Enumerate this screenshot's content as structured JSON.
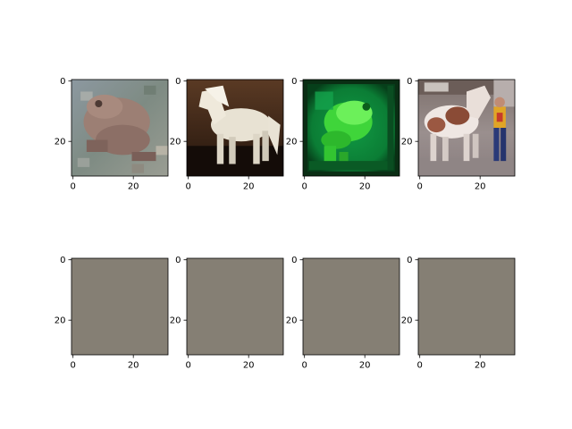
{
  "chart_data": {
    "type": "image-grid",
    "rows": 2,
    "cols": 4,
    "panels": [
      {
        "row": 0,
        "col": 0,
        "content": "toad photo",
        "xticks": [
          "0",
          "20"
        ],
        "yticks": [
          "0",
          "20"
        ],
        "xlim": [
          -0.5,
          31.5
        ],
        "ylim": [
          31.5,
          -0.5
        ]
      },
      {
        "row": 0,
        "col": 1,
        "content": "white horse photo",
        "xticks": [
          "0",
          "20"
        ],
        "yticks": [
          "0",
          "20"
        ],
        "xlim": [
          -0.5,
          31.5
        ],
        "ylim": [
          31.5,
          -0.5
        ]
      },
      {
        "row": 0,
        "col": 2,
        "content": "green frog photo",
        "xticks": [
          "0",
          "20"
        ],
        "yticks": [
          "0",
          "20"
        ],
        "xlim": [
          -0.5,
          31.5
        ],
        "ylim": [
          31.5,
          -0.5
        ]
      },
      {
        "row": 0,
        "col": 3,
        "content": "horse and person photo",
        "xticks": [
          "0",
          "20"
        ],
        "yticks": [
          "0",
          "20"
        ],
        "xlim": [
          -0.5,
          31.5
        ],
        "ylim": [
          31.5,
          -0.5
        ]
      },
      {
        "row": 1,
        "col": 0,
        "content": "uniform gray image",
        "fill": "#857f74",
        "xticks": [
          "0",
          "20"
        ],
        "yticks": [
          "0",
          "20"
        ],
        "xlim": [
          -0.5,
          31.5
        ],
        "ylim": [
          31.5,
          -0.5
        ]
      },
      {
        "row": 1,
        "col": 1,
        "content": "uniform gray image",
        "fill": "#857f74",
        "xticks": [
          "0",
          "20"
        ],
        "yticks": [
          "0",
          "20"
        ],
        "xlim": [
          -0.5,
          31.5
        ],
        "ylim": [
          31.5,
          -0.5
        ]
      },
      {
        "row": 1,
        "col": 2,
        "content": "uniform gray image",
        "fill": "#857f74",
        "xticks": [
          "0",
          "20"
        ],
        "yticks": [
          "0",
          "20"
        ],
        "xlim": [
          -0.5,
          31.5
        ],
        "ylim": [
          31.5,
          -0.5
        ]
      },
      {
        "row": 1,
        "col": 3,
        "content": "uniform gray image",
        "fill": "#857f74",
        "xticks": [
          "0",
          "20"
        ],
        "yticks": [
          "0",
          "20"
        ],
        "xlim": [
          -0.5,
          31.5
        ],
        "ylim": [
          31.5,
          -0.5
        ]
      }
    ]
  }
}
